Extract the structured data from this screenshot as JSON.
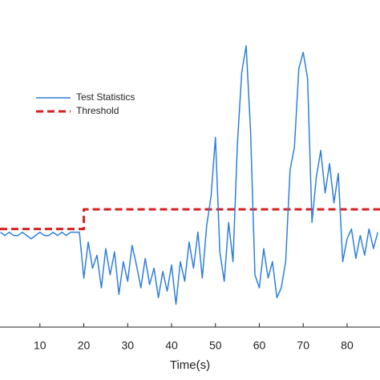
{
  "chart_data": {
    "type": "line",
    "xlabel": "Time(s)",
    "xlim": [
      0.9,
      87.5
    ],
    "ylim": [
      0,
      10
    ],
    "xticks": [
      10,
      20,
      30,
      40,
      50,
      60,
      70,
      80
    ],
    "legend": "upper left",
    "series": [
      {
        "name": "Test Statistics",
        "color": "#2f7fdc",
        "x": [
          1,
          2,
          3,
          4,
          5,
          6,
          7,
          8,
          9,
          10,
          11,
          12,
          13,
          14,
          15,
          16,
          17,
          18,
          19,
          20,
          21,
          22,
          23,
          24,
          25,
          26,
          27,
          28,
          29,
          30,
          31,
          32,
          33,
          34,
          35,
          36,
          37,
          38,
          39,
          40,
          41,
          42,
          43,
          44,
          45,
          46,
          47,
          48,
          49,
          50,
          51,
          52,
          53,
          54,
          55,
          56,
          57,
          58,
          59,
          60,
          61,
          62,
          63,
          64,
          65,
          66,
          67,
          68,
          69,
          70,
          71,
          72,
          73,
          74,
          75,
          76,
          77,
          78,
          79,
          80,
          81,
          82,
          83,
          84,
          85,
          86,
          87
        ],
        "values": [
          2.9,
          2.8,
          2.9,
          2.8,
          2.8,
          2.9,
          2.8,
          2.7,
          2.8,
          2.9,
          2.8,
          2.8,
          2.9,
          2.8,
          2.9,
          2.8,
          2.9,
          2.9,
          2.9,
          1.5,
          2.6,
          1.8,
          2.2,
          1.2,
          2.4,
          1.6,
          2.3,
          1.0,
          2.0,
          1.4,
          2.5,
          1.9,
          1.2,
          2.1,
          1.3,
          1.8,
          0.9,
          1.7,
          1.1,
          1.9,
          0.7,
          2.0,
          1.4,
          2.6,
          1.8,
          2.9,
          1.5,
          3.1,
          4.0,
          5.8,
          2.3,
          1.4,
          3.2,
          2.0,
          5.6,
          7.8,
          8.6,
          6.0,
          1.6,
          1.2,
          2.4,
          1.5,
          2.0,
          0.9,
          1.2,
          2.0,
          4.8,
          5.5,
          7.9,
          8.4,
          7.6,
          3.2,
          4.6,
          5.4,
          4.1,
          5.0,
          3.8,
          4.7,
          2.0,
          2.7,
          3.0,
          2.1,
          2.8,
          2.2,
          3.0,
          2.4,
          2.9
        ]
      },
      {
        "name": "Threshold",
        "color": "#d62020",
        "dashed": true,
        "x": [
          0.9,
          20,
          20,
          87.5
        ],
        "values": [
          3.0,
          3.0,
          3.6,
          3.6
        ]
      }
    ]
  }
}
